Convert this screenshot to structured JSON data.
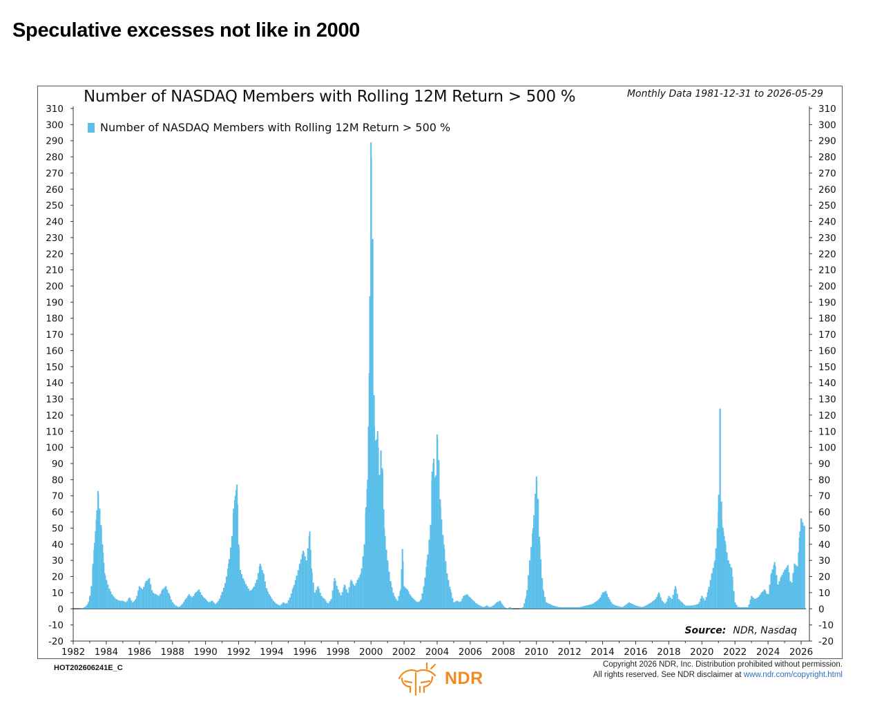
{
  "page": {
    "title": "Speculative excesses not like in 2000"
  },
  "chart_data": {
    "type": "bar",
    "title": "Number of NASDAQ Members with Rolling 12M Return > 500 %",
    "subtitle": "Monthly Data 1981-12-31 to 2026-05-29",
    "legend": [
      "Number of NASDAQ Members with Rolling 12M Return > 500 %"
    ],
    "legend_position": "top-left",
    "color": "#5bbfea",
    "ylim": [
      -20,
      310
    ],
    "yticks": [
      310,
      300,
      290,
      280,
      270,
      260,
      250,
      240,
      230,
      220,
      210,
      200,
      190,
      180,
      170,
      160,
      150,
      140,
      130,
      120,
      110,
      100,
      90,
      80,
      70,
      60,
      50,
      40,
      30,
      20,
      10,
      0,
      -10,
      -20
    ],
    "xlim": [
      1982.0,
      2026.5
    ],
    "xticks": [
      "1982",
      "1984",
      "1986",
      "1988",
      "1990",
      "1992",
      "1994",
      "1996",
      "1998",
      "2000",
      "2002",
      "2004",
      "2006",
      "2008",
      "2010",
      "2012",
      "2014",
      "2016",
      "2018",
      "2020",
      "2022",
      "2024",
      "2026"
    ],
    "grid": false,
    "series": [
      {
        "name": "Number of NASDAQ Members with Rolling 12M Return > 500 %",
        "points": [
          [
            1982.1,
            0
          ],
          [
            1982.4,
            0
          ],
          [
            1982.7,
            1
          ],
          [
            1982.9,
            3
          ],
          [
            1983.0,
            7
          ],
          [
            1983.1,
            14
          ],
          [
            1983.2,
            28
          ],
          [
            1983.3,
            41
          ],
          [
            1983.4,
            55
          ],
          [
            1983.5,
            73
          ],
          [
            1983.6,
            62
          ],
          [
            1983.7,
            50
          ],
          [
            1983.8,
            35
          ],
          [
            1983.9,
            22
          ],
          [
            1984.0,
            18
          ],
          [
            1984.2,
            12
          ],
          [
            1984.4,
            8
          ],
          [
            1984.6,
            6
          ],
          [
            1984.8,
            5
          ],
          [
            1985.0,
            5
          ],
          [
            1985.2,
            4
          ],
          [
            1985.4,
            7
          ],
          [
            1985.6,
            4
          ],
          [
            1985.8,
            6
          ],
          [
            1986.0,
            14
          ],
          [
            1986.2,
            12
          ],
          [
            1986.4,
            17
          ],
          [
            1986.6,
            19
          ],
          [
            1986.8,
            10
          ],
          [
            1987.0,
            9
          ],
          [
            1987.2,
            8
          ],
          [
            1987.4,
            12
          ],
          [
            1987.6,
            14
          ],
          [
            1987.8,
            9
          ],
          [
            1988.0,
            4
          ],
          [
            1988.2,
            2
          ],
          [
            1988.4,
            1
          ],
          [
            1988.6,
            3
          ],
          [
            1988.8,
            6
          ],
          [
            1989.0,
            9
          ],
          [
            1989.2,
            7
          ],
          [
            1989.4,
            10
          ],
          [
            1989.6,
            12
          ],
          [
            1989.8,
            8
          ],
          [
            1990.0,
            6
          ],
          [
            1990.2,
            4
          ],
          [
            1990.4,
            5
          ],
          [
            1990.6,
            3
          ],
          [
            1990.8,
            5
          ],
          [
            1991.0,
            10
          ],
          [
            1991.2,
            16
          ],
          [
            1991.4,
            28
          ],
          [
            1991.6,
            45
          ],
          [
            1991.7,
            62
          ],
          [
            1991.8,
            70
          ],
          [
            1991.9,
            77
          ],
          [
            1992.0,
            40
          ],
          [
            1992.1,
            24
          ],
          [
            1992.3,
            18
          ],
          [
            1992.5,
            14
          ],
          [
            1992.7,
            11
          ],
          [
            1992.9,
            13
          ],
          [
            1993.1,
            18
          ],
          [
            1993.3,
            28
          ],
          [
            1993.5,
            22
          ],
          [
            1993.7,
            12
          ],
          [
            1993.9,
            8
          ],
          [
            1994.1,
            5
          ],
          [
            1994.3,
            3
          ],
          [
            1994.5,
            2
          ],
          [
            1994.7,
            4
          ],
          [
            1994.9,
            3
          ],
          [
            1995.1,
            7
          ],
          [
            1995.3,
            13
          ],
          [
            1995.5,
            20
          ],
          [
            1995.7,
            28
          ],
          [
            1995.9,
            36
          ],
          [
            1996.1,
            30
          ],
          [
            1996.3,
            48
          ],
          [
            1996.4,
            25
          ],
          [
            1996.6,
            10
          ],
          [
            1996.8,
            14
          ],
          [
            1997.0,
            8
          ],
          [
            1997.2,
            6
          ],
          [
            1997.4,
            3
          ],
          [
            1997.6,
            6
          ],
          [
            1997.8,
            19
          ],
          [
            1998.0,
            12
          ],
          [
            1998.2,
            8
          ],
          [
            1998.4,
            15
          ],
          [
            1998.6,
            10
          ],
          [
            1998.8,
            18
          ],
          [
            1999.0,
            14
          ],
          [
            1999.2,
            18
          ],
          [
            1999.4,
            22
          ],
          [
            1999.6,
            40
          ],
          [
            1999.7,
            63
          ],
          [
            1999.8,
            80
          ],
          [
            1999.9,
            146
          ],
          [
            2000.0,
            289
          ],
          [
            2000.1,
            229
          ],
          [
            2000.2,
            113
          ],
          [
            2000.3,
            100
          ],
          [
            2000.4,
            110
          ],
          [
            2000.5,
            80
          ],
          [
            2000.6,
            98
          ],
          [
            2000.7,
            85
          ],
          [
            2000.8,
            50
          ],
          [
            2001.0,
            30
          ],
          [
            2001.2,
            16
          ],
          [
            2001.4,
            8
          ],
          [
            2001.6,
            5
          ],
          [
            2001.8,
            12
          ],
          [
            2001.9,
            37
          ],
          [
            2002.0,
            14
          ],
          [
            2002.2,
            12
          ],
          [
            2002.4,
            8
          ],
          [
            2002.6,
            6
          ],
          [
            2002.8,
            4
          ],
          [
            2003.0,
            5
          ],
          [
            2003.2,
            14
          ],
          [
            2003.4,
            30
          ],
          [
            2003.6,
            52
          ],
          [
            2003.7,
            85
          ],
          [
            2003.8,
            93
          ],
          [
            2003.9,
            70
          ],
          [
            2004.0,
            108
          ],
          [
            2004.1,
            92
          ],
          [
            2004.2,
            63
          ],
          [
            2004.4,
            40
          ],
          [
            2004.6,
            22
          ],
          [
            2004.8,
            12
          ],
          [
            2005.0,
            4
          ],
          [
            2005.2,
            5
          ],
          [
            2005.4,
            4
          ],
          [
            2005.6,
            8
          ],
          [
            2005.8,
            9
          ],
          [
            2006.0,
            7
          ],
          [
            2006.2,
            5
          ],
          [
            2006.4,
            3
          ],
          [
            2006.6,
            2
          ],
          [
            2006.8,
            1
          ],
          [
            2007.0,
            2
          ],
          [
            2007.2,
            1
          ],
          [
            2007.4,
            2
          ],
          [
            2007.6,
            4
          ],
          [
            2007.8,
            5
          ],
          [
            2008.0,
            2
          ],
          [
            2008.2,
            0
          ],
          [
            2008.4,
            1
          ],
          [
            2008.6,
            0
          ],
          [
            2008.8,
            0
          ],
          [
            2009.0,
            0
          ],
          [
            2009.2,
            1
          ],
          [
            2009.4,
            8
          ],
          [
            2009.6,
            30
          ],
          [
            2009.8,
            50
          ],
          [
            2010.0,
            82
          ],
          [
            2010.1,
            68
          ],
          [
            2010.2,
            40
          ],
          [
            2010.4,
            12
          ],
          [
            2010.6,
            4
          ],
          [
            2010.8,
            3
          ],
          [
            2011.0,
            2
          ],
          [
            2011.4,
            1
          ],
          [
            2011.8,
            1
          ],
          [
            2012.2,
            1
          ],
          [
            2012.6,
            1
          ],
          [
            2013.0,
            2
          ],
          [
            2013.4,
            3
          ],
          [
            2013.8,
            6
          ],
          [
            2014.0,
            10
          ],
          [
            2014.2,
            11
          ],
          [
            2014.4,
            6
          ],
          [
            2014.6,
            3
          ],
          [
            2014.8,
            2
          ],
          [
            2015.2,
            1
          ],
          [
            2015.6,
            4
          ],
          [
            2016.0,
            2
          ],
          [
            2016.4,
            1
          ],
          [
            2016.8,
            3
          ],
          [
            2017.2,
            6
          ],
          [
            2017.4,
            10
          ],
          [
            2017.6,
            5
          ],
          [
            2017.8,
            3
          ],
          [
            2018.0,
            8
          ],
          [
            2018.2,
            6
          ],
          [
            2018.4,
            14
          ],
          [
            2018.6,
            6
          ],
          [
            2018.8,
            4
          ],
          [
            2019.0,
            2
          ],
          [
            2019.4,
            2
          ],
          [
            2019.8,
            3
          ],
          [
            2020.0,
            8
          ],
          [
            2020.2,
            5
          ],
          [
            2020.4,
            12
          ],
          [
            2020.6,
            22
          ],
          [
            2020.8,
            30
          ],
          [
            2021.0,
            60
          ],
          [
            2021.1,
            124
          ],
          [
            2021.2,
            55
          ],
          [
            2021.3,
            48
          ],
          [
            2021.4,
            42
          ],
          [
            2021.6,
            30
          ],
          [
            2021.8,
            25
          ],
          [
            2022.0,
            4
          ],
          [
            2022.2,
            1
          ],
          [
            2022.4,
            1
          ],
          [
            2022.8,
            1
          ],
          [
            2023.0,
            8
          ],
          [
            2023.2,
            6
          ],
          [
            2023.4,
            7
          ],
          [
            2023.6,
            10
          ],
          [
            2023.8,
            12
          ],
          [
            2024.0,
            8
          ],
          [
            2024.2,
            22
          ],
          [
            2024.4,
            29
          ],
          [
            2024.6,
            15
          ],
          [
            2024.8,
            20
          ],
          [
            2025.0,
            24
          ],
          [
            2025.2,
            27
          ],
          [
            2025.4,
            14
          ],
          [
            2025.6,
            28
          ],
          [
            2025.8,
            26
          ],
          [
            2025.9,
            44
          ],
          [
            2026.0,
            56
          ],
          [
            2026.2,
            51
          ]
        ]
      }
    ],
    "annotations": {
      "source_label": "Source:",
      "source_value": "NDR, Nasdaq"
    }
  },
  "footer": {
    "code": "HOT202606241E_C",
    "logo_text": "NDR",
    "copyright_line1": "Copyright 2026 NDR, Inc. Distribution prohibited without permission.",
    "copyright_line2_prefix": "All rights reserved. See NDR disclaimer at ",
    "copyright_url": "www.ndr.com/copyright.html"
  }
}
